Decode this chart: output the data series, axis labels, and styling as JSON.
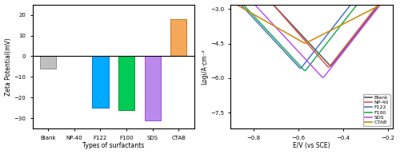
{
  "bar_categories": [
    "Blank",
    "NP-40",
    "F122",
    "F100",
    "SDS",
    "CTAB"
  ],
  "bar_values": [
    -6,
    0,
    -25,
    -26,
    -31,
    18
  ],
  "bar_colors": [
    "#c0c0c0",
    "#ffffff",
    "#00aaff",
    "#00cc55",
    "#bb88ee",
    "#f5a85a"
  ],
  "bar_edgecolors": [
    "#909090",
    "#909090",
    "#0077cc",
    "#009933",
    "#9955cc",
    "#cc7722"
  ],
  "bar_ylabel": "Zeta Potential(mV)",
  "bar_xlabel": "Types of surfactants",
  "bar_ylim": [
    -35,
    25
  ],
  "bar_yticks": [
    -30,
    -20,
    -10,
    0,
    10,
    20
  ],
  "line_xlabel": "E/V (vs SCE)",
  "line_ylabel": "Logi/A·cm⁻²",
  "line_ylim": [
    -8.2,
    -2.8
  ],
  "line_xlim": [
    -0.9,
    -0.18
  ],
  "line_yticks": [
    -7.5,
    -6.0,
    -4.5,
    -3.0
  ],
  "line_xticks": [
    -0.8,
    -0.6,
    -0.4,
    -0.2
  ],
  "bg_color": "#ffffff",
  "curves": [
    {
      "label": "Blank",
      "color": "#555555",
      "E_corr": -0.455,
      "logi_corr": -5.5,
      "ba": 0.08,
      "bc": 0.095
    },
    {
      "label": "NP-40",
      "color": "#e05555",
      "E_corr": -0.465,
      "logi_corr": -5.55,
      "ba": 0.08,
      "bc": 0.09
    },
    {
      "label": "F122",
      "color": "#4477cc",
      "E_corr": -0.59,
      "logi_corr": -5.6,
      "ba": 0.08,
      "bc": 0.095
    },
    {
      "label": "F100",
      "color": "#22aa55",
      "E_corr": -0.57,
      "logi_corr": -5.7,
      "ba": 0.08,
      "bc": 0.095
    },
    {
      "label": "SDS",
      "color": "#bb55ee",
      "E_corr": -0.49,
      "logi_corr": -6.0,
      "ba": 0.08,
      "bc": 0.095
    },
    {
      "label": "CTAB",
      "color": "#cc8800",
      "E_corr": -0.57,
      "logi_corr": -4.5,
      "ba": 0.2,
      "bc": 0.18
    }
  ]
}
